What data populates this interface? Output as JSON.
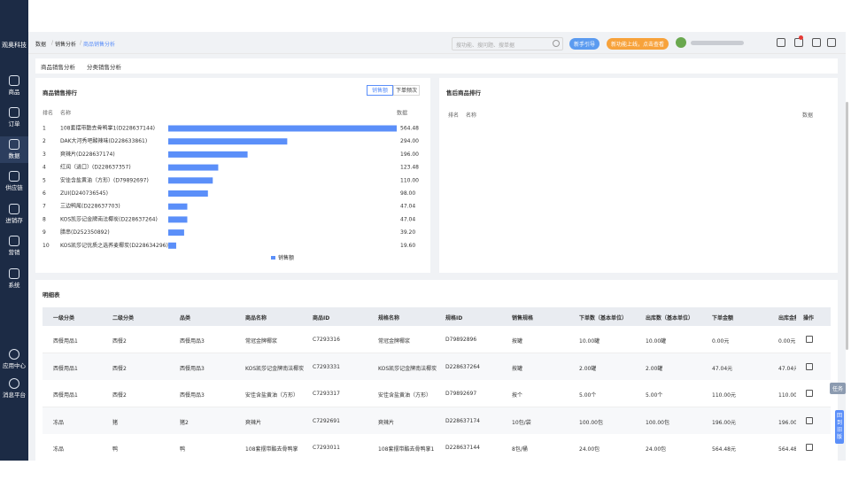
{
  "sidebar": {
    "brand": "观奥科技",
    "menu": [
      "商品",
      "订单",
      "数据",
      "供应链",
      "进销存",
      "营销",
      "系统"
    ],
    "active": 2,
    "bottom": [
      "应用中心",
      "消息平台"
    ]
  },
  "header": {
    "breadcrumb": [
      "数据",
      "销售分析",
      "商品销售分析"
    ],
    "search_placeholder": "搜功能、搜问题、搜单据",
    "guide_button": "新手引导",
    "news_button": "新功能上线，点击查看"
  },
  "tabs": [
    "商品销售分析",
    "分类销售分析"
  ],
  "chart_data": {
    "type": "bar",
    "title": "商品销售排行",
    "toggles": [
      "销售额",
      "下单频次"
    ],
    "columns": [
      "排名",
      "名称",
      "数据"
    ],
    "ranks": [
      1,
      2,
      3,
      4,
      5,
      6,
      7,
      8,
      9,
      10
    ],
    "categories": [
      "108套摆带酷去骨鸭掌1(D228637144)",
      "DAK大河秀吧酸辣味(D228633861)",
      "爽辣片(D228637174)",
      "红润（进口）(D228637357)",
      "安佳含盐黄油（方形）(D79892697)",
      "ZUI(D240736545)",
      "三边鸭尾(D228637703)",
      "KOS凯莎记金牌南法椰炭(D228637264)",
      "腊串(D252350892)",
      "KOS凯莎记优质之选荞麦椰炭(D228634296)"
    ],
    "series": [
      {
        "name": "销售额",
        "color": "#5b8ff9",
        "values": [
          564.48,
          294,
          196,
          123.48,
          110,
          98,
          47.04,
          47.04,
          39.2,
          19.6
        ],
        "value_labels": [
          "564.48",
          "294.00",
          "196.00",
          "123.48",
          "110.00",
          "98.00",
          "47.04",
          "47.04",
          "39.20",
          "19.60"
        ]
      }
    ]
  },
  "after_sales": {
    "title": "售后商品排行",
    "columns": [
      "排名",
      "名称",
      "数据"
    ]
  },
  "detail_table": {
    "title": "明细表",
    "columns": [
      "一级分类",
      "二级分类",
      "品类",
      "商品名称",
      "商品ID",
      "规格名称",
      "规格ID",
      "销售规格",
      "下单数（基本单位）",
      "出库数（基本单位）",
      "下单金额",
      "出库金额",
      "操作"
    ],
    "rows": [
      [
        "西餐用品1",
        "西餐2",
        "西餐用品3",
        "常冠金牌椰浆",
        "C7293316",
        "常冠金牌椰浆",
        "D79892896",
        "按罐",
        "10.00罐",
        "10.00罐",
        "0.00元",
        "0.00元"
      ],
      [
        "西餐用品1",
        "西餐2",
        "西餐用品3",
        "KOS凯莎记金牌南法椰炭",
        "C7293331",
        "KOS凯莎记金牌南法椰炭",
        "D228637264",
        "按罐",
        "2.00罐",
        "2.00罐",
        "47.04元",
        "47.04元"
      ],
      [
        "西餐用品1",
        "西餐2",
        "西餐用品3",
        "安佳含盐黄油（方形）",
        "C7293317",
        "安佳含盐黄油（方形）",
        "D79892697",
        "按个",
        "5.00个",
        "5.00个",
        "110.00元",
        "110.00元"
      ],
      [
        "冻品",
        "猪",
        "猪2",
        "爽辣片",
        "C7292691",
        "爽辣片",
        "D228637174",
        "10包/袋",
        "100.00包",
        "100.00包",
        "196.00元",
        "196.00元"
      ],
      [
        "冻品",
        "鸭",
        "鸭",
        "108套摆带酷去骨鸭掌",
        "C7293011",
        "108套摆带酷去骨鸭掌1",
        "D228637144",
        "8包/桶",
        "24.00包",
        "24.00包",
        "564.48元",
        "564.48元"
      ]
    ]
  },
  "float": {
    "task": "任务",
    "old_version": "回到旧版"
  }
}
